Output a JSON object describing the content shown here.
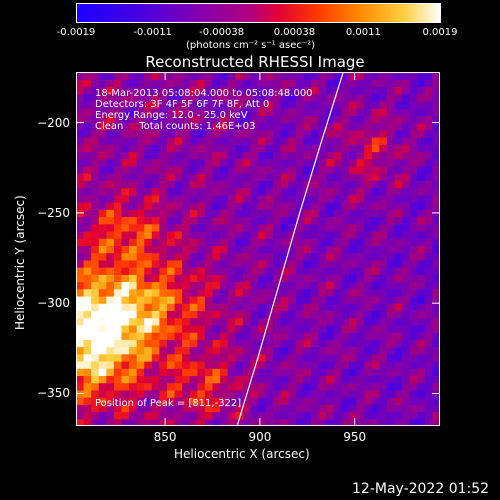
{
  "colorbar": {
    "tick_labels": [
      "-0.0019",
      "-0.0011",
      "-0.00038",
      "0.00038",
      "0.0011",
      "0.0019"
    ],
    "tick_values": [
      -0.0019,
      -0.0011,
      -0.00038,
      0.00038,
      0.0011,
      0.0019
    ],
    "range": [
      -0.0019,
      0.0019
    ],
    "units": "(photons cm⁻² s⁻¹ asec⁻²)",
    "colors": [
      "#1a00ff",
      "#5a00d0",
      "#8a00a8",
      "#b8007a",
      "#e8004a",
      "#ff3000",
      "#ff8000",
      "#ffc000",
      "#ffee80",
      "#ffffff"
    ]
  },
  "chart_data": {
    "type": "heatmap",
    "title": "Reconstructed RHESSI Image",
    "xlabel": "Heliocentric X (arcsec)",
    "ylabel": "Heliocentric Y (arcsec)",
    "xlim": [
      803,
      995
    ],
    "ylim": [
      -368,
      -172
    ],
    "x_ticks": [
      850,
      900,
      950
    ],
    "y_ticks": [
      -200,
      -250,
      -300,
      -350
    ],
    "annotations": [
      "18-Mar-2013 05:08:04.000 to 05:08:48.000",
      "Detectors: 3F 4F 5F 6F 7F 8F, Att 0",
      "Energy Range: 12.0 - 25.0 keV",
      "Clean     Total counts: 1.46E+03"
    ],
    "peak_label": "Position of Peak = [811,-322]",
    "peak": [
      811,
      -322
    ],
    "limb_curve": [
      [
        888,
        -368
      ],
      [
        899,
        -330
      ],
      [
        910,
        -290
      ],
      [
        921,
        -250
      ],
      [
        932,
        -212
      ],
      [
        944,
        -172
      ]
    ]
  },
  "timestamp": "12-May-2022 01:52"
}
